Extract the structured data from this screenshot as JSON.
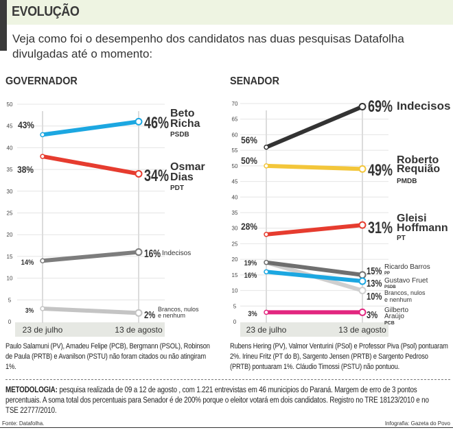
{
  "header": {
    "title": "EVOLUÇÃO",
    "intro": "Veja como foi o desempenho dos candidatos nas duas pesquisas Datafolha divulgadas até o momento:"
  },
  "chart_data": [
    {
      "type": "line",
      "title": "GOVERNADOR",
      "categories": [
        "23 de julho",
        "13 de agosto"
      ],
      "ylim": [
        0,
        50
      ],
      "yticks": [
        0,
        5,
        10,
        15,
        20,
        25,
        30,
        35,
        40,
        45,
        50
      ],
      "grid": true,
      "series": [
        {
          "name_lines": [
            "Beto",
            "Richa"
          ],
          "party": "PSDB",
          "values": [
            43,
            46
          ],
          "labels": [
            "43%",
            "46%"
          ],
          "color": "#1ca7e1"
        },
        {
          "name_lines": [
            "Osmar",
            "Dias"
          ],
          "party": "PDT",
          "values": [
            38,
            34
          ],
          "labels": [
            "38%",
            "34%"
          ],
          "color": "#e63c2f"
        },
        {
          "name_lines": [
            "Indecisos"
          ],
          "party": "",
          "values": [
            14,
            16
          ],
          "labels": [
            "14%",
            "16%"
          ],
          "color": "#7d7d7d"
        },
        {
          "name_lines": [
            "Brancos, nulos",
            "e nenhum"
          ],
          "party": "",
          "values": [
            3,
            2
          ],
          "labels": [
            "3%",
            "2%"
          ],
          "color": "#c4c4c4"
        }
      ]
    },
    {
      "type": "line",
      "title": "SENADOR",
      "categories": [
        "23 de julho",
        "13 de agosto"
      ],
      "ylim": [
        0,
        70
      ],
      "yticks": [
        0,
        5,
        10,
        15,
        20,
        25,
        30,
        35,
        40,
        45,
        50,
        55,
        60,
        65,
        70
      ],
      "grid": true,
      "series": [
        {
          "name_lines": [
            "Indecisos"
          ],
          "party": "",
          "values": [
            56,
            69
          ],
          "labels": [
            "56%",
            "69%"
          ],
          "color": "#333333"
        },
        {
          "name_lines": [
            "Roberto",
            "Requião"
          ],
          "party": "PMDB",
          "values": [
            50,
            49
          ],
          "labels": [
            "50%",
            "49%"
          ],
          "color": "#f3c63a"
        },
        {
          "name_lines": [
            "Gleisi",
            "Hoffmann"
          ],
          "party": "PT",
          "values": [
            28,
            31
          ],
          "labels": [
            "28%",
            "31%"
          ],
          "color": "#e63c2f"
        },
        {
          "name_lines": [
            "Brancos, nulos",
            "e nenhum"
          ],
          "party": "",
          "values": [
            19,
            10
          ],
          "labels": [
            "",
            "10%"
          ],
          "color": "#cfcfcf"
        },
        {
          "name_lines": [
            "Ricardo Barros"
          ],
          "party": "PP",
          "values": [
            19,
            15
          ],
          "labels": [
            "19%",
            "15%"
          ],
          "color": "#6f6f6f"
        },
        {
          "name_lines": [
            "Gustavo Fruet"
          ],
          "party": "PSDB",
          "values": [
            16,
            13
          ],
          "labels": [
            "16%",
            "13%"
          ],
          "color": "#1ca7e1"
        },
        {
          "name_lines": [
            "Gilberto",
            "Araújo"
          ],
          "party": "PCB",
          "values": [
            3,
            3
          ],
          "labels": [
            "3%",
            "3%"
          ],
          "color": "#e2267f"
        }
      ]
    }
  ],
  "notes": {
    "governador": "Paulo Salamuni (PV), Amadeu Felipe (PCB), Bergmann (PSOL), Robinson de Paula (PRTB) e Avanilson (PSTU) não foram citados ou não atingiram 1%.",
    "senador": "Rubens Hering (PV), Valmor Venturini (PSol) e Professor Piva (Psol) pontuaram 2%. Irineu Fritz (PT do B), Sargento Jensen (PRTB) e Sargento Pedroso (PRTB) pontuaram 1%. Cláudio Timossi (PSTU) não pontuou."
  },
  "metodologia": {
    "label": "METODOLOGIA:",
    "text": " pesquisa realizada de 09 a 12 de agosto , com 1.221 entrevistas em 46 municipios do Paraná. Margem de erro de 3 pontos percentuais. A soma total dos percentuais para Senador é de 200% porque o eleitor votará em dois candidatos. Registro no TRE 18123/2010 e no TSE 22777/2010."
  },
  "footer": {
    "source": "Fonte: Datafolha.",
    "credit": "Infografia: Gazeta do Povo"
  }
}
